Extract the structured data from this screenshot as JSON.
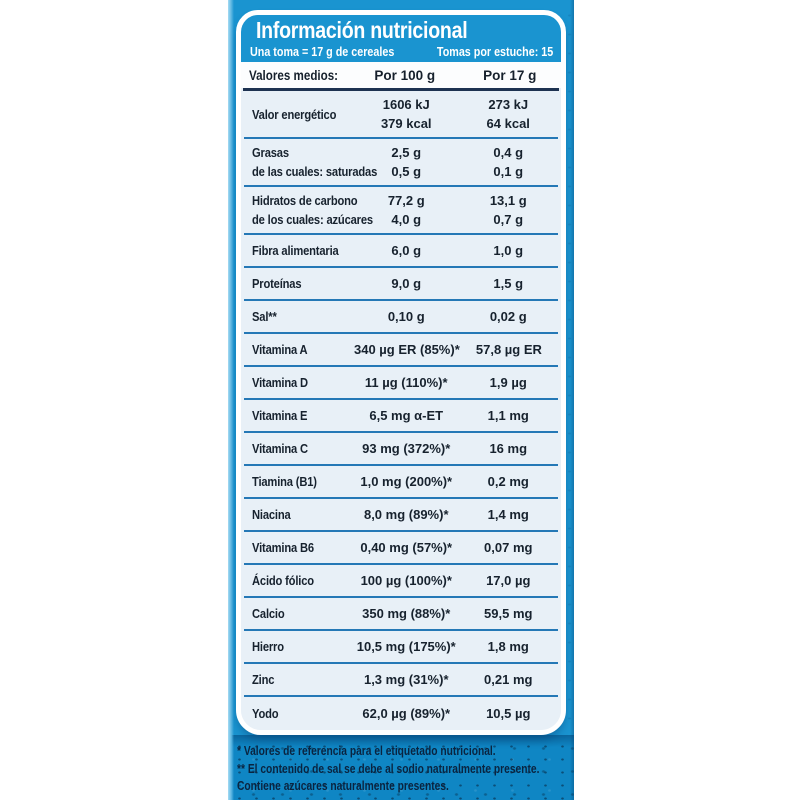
{
  "header": {
    "title": "Información nutricional",
    "serving_note": "Una toma = 17 g de cereales",
    "servings_note": "Tomas por estuche: 15"
  },
  "table": {
    "columns": [
      "Valores medios:",
      "Por 100 g",
      "Por 17 g"
    ],
    "rows": [
      {
        "label": "Valor energético",
        "per100": [
          "1606 kJ",
          "379 kcal"
        ],
        "per17": [
          "273 kJ",
          "64 kcal"
        ]
      },
      {
        "label": "Grasas",
        "label2": "de las cuales: saturadas",
        "per100": [
          "2,5 g",
          "0,5 g"
        ],
        "per17": [
          "0,4 g",
          "0,1 g"
        ]
      },
      {
        "label": "Hidratos de carbono",
        "label2": "de los cuales: azúcares",
        "per100": [
          "77,2 g",
          "4,0 g"
        ],
        "per17": [
          "13,1 g",
          "0,7 g"
        ]
      },
      {
        "label": "Fibra alimentaria",
        "per100": [
          "6,0 g"
        ],
        "per17": [
          "1,0 g"
        ]
      },
      {
        "label": "Proteínas",
        "per100": [
          "9,0 g"
        ],
        "per17": [
          "1,5 g"
        ]
      },
      {
        "label": "Sal**",
        "per100": [
          "0,10 g"
        ],
        "per17": [
          "0,02 g"
        ]
      },
      {
        "label": "Vitamina A",
        "per100": [
          "340 µg ER (85%)*"
        ],
        "per17": [
          "57,8 µg ER"
        ]
      },
      {
        "label": "Vitamina D",
        "per100": [
          "11 µg (110%)*"
        ],
        "per17": [
          "1,9 µg"
        ]
      },
      {
        "label": "Vitamina E",
        "per100": [
          "6,5 mg α-ET"
        ],
        "per17": [
          "1,1 mg"
        ]
      },
      {
        "label": "Vitamina C",
        "per100": [
          "93 mg (372%)*"
        ],
        "per17": [
          "16 mg"
        ]
      },
      {
        "label": "Tiamina (B1)",
        "per100": [
          "1,0 mg (200%)*"
        ],
        "per17": [
          "0,2 mg"
        ]
      },
      {
        "label": "Niacina",
        "per100": [
          "8,0 mg (89%)*"
        ],
        "per17": [
          "1,4 mg"
        ]
      },
      {
        "label": "Vitamina B6",
        "per100": [
          "0,40 mg (57%)*"
        ],
        "per17": [
          "0,07 mg"
        ]
      },
      {
        "label": "Ácido fólico",
        "per100": [
          "100 µg (100%)*"
        ],
        "per17": [
          "17,0 µg"
        ]
      },
      {
        "label": "Calcio",
        "per100": [
          "350 mg (88%)*"
        ],
        "per17": [
          "59,5 mg"
        ]
      },
      {
        "label": "Hierro",
        "per100": [
          "10,5 mg (175%)*"
        ],
        "per17": [
          "1,8 mg"
        ]
      },
      {
        "label": "Zinc",
        "per100": [
          "1,3 mg (31%)*"
        ],
        "per17": [
          "0,21 mg"
        ]
      },
      {
        "label": "Yodo",
        "per100": [
          "62,0 µg (89%)*"
        ],
        "per17": [
          "10,5 µg"
        ]
      }
    ]
  },
  "footnotes": [
    "* Valores de referencia para el etiquetado nutricional.",
    "** El contenido de sal se debe al sodio naturalmente presente.",
    "Contiene azúcares naturalmente presentes."
  ],
  "colors": {
    "panel_blue": "#1a94d0",
    "footer_blue": "#0f86c4",
    "divider_blue": "#2478b6",
    "header_rule_navy": "#1d3251",
    "table_bg": "#e8f0f7",
    "footnote_ink": "#0a2440",
    "text_ink": "#17222e",
    "title_white": "#ffffff"
  }
}
